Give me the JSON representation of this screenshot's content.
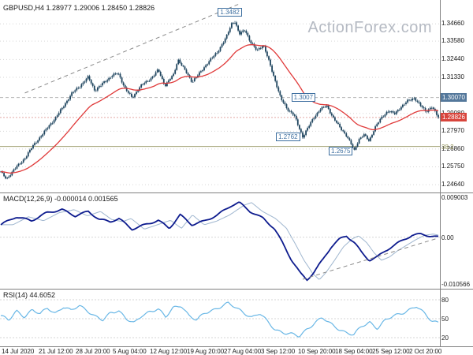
{
  "header": {
    "symbol_line": "GBPUSD,H4 1.28977 1.29006 1.28450 1.28826",
    "watermark": "ActionForex.com"
  },
  "indicator_labels": {
    "macd": "MACD(12,26,9) -0.000014 0.001565",
    "rsi": "RSI(14) 44.6052"
  },
  "colors": {
    "candle": "#1f455f",
    "ma": "#e03a3a",
    "macd": "#0d1b8e",
    "macd_signal": "#9fb6cf",
    "rsi": "#69b7e6",
    "grid": "#d6d6d6",
    "trendline": "#8a8a8a",
    "separator": "#808080",
    "fib_line": "#a0a070",
    "fib_text": "#8f8f55",
    "level_badge": "#54789b",
    "current_badge": "#d8453c",
    "flag": "#3c6e9f",
    "watermark": "#b5bac3",
    "axis_text": "#1a1a1a"
  },
  "chart_data": [
    {
      "type": "candlestick",
      "title": "GBPUSD,H4",
      "ohlc_display": {
        "open": 1.28977,
        "high": 1.29006,
        "low": 1.2845,
        "close": 1.28826
      },
      "ylim": [
        1.2425,
        1.3585
      ],
      "y_ticks": [
        {
          "label": "1.34660",
          "value": 1.3466
        },
        {
          "label": "1.33580",
          "value": 1.3358
        },
        {
          "label": "1.32440",
          "value": 1.3244
        },
        {
          "label": "1.31330",
          "value": 1.3133
        },
        {
          "label": "1.29080",
          "value": 1.2908
        },
        {
          "label": "1.27970",
          "value": 1.2797
        },
        {
          "label": "1.26860",
          "value": 1.2686
        },
        {
          "label": "1.25750",
          "value": 1.2575
        },
        {
          "label": "1.24640",
          "value": 1.2464
        }
      ],
      "axis_badges": [
        {
          "label": "1.30070",
          "value": 1.3007,
          "style": "level"
        },
        {
          "label": "1.28826",
          "value": 1.28826,
          "style": "current"
        },
        {
          "label": "38.2",
          "value": 1.2702,
          "style": "fib"
        }
      ],
      "x_ticks": [
        "14 Jul 2020",
        "21 Jul 12:00",
        "28 Jul 20:00",
        "5 Aug 04:00",
        "12 Aug 12:00",
        "19 Aug 20:00",
        "27 Aug 04:00",
        "3 Sep 12:00",
        "10 Sep 20:00",
        "18 Sep 04:00",
        "25 Sep 12:00",
        "2 Oct 20:00"
      ],
      "close_path": [
        [
          0.0,
          1.2545
        ],
        [
          0.013,
          1.2495
        ],
        [
          0.03,
          1.256
        ],
        [
          0.05,
          1.261
        ],
        [
          0.072,
          1.27
        ],
        [
          0.1,
          1.2795
        ],
        [
          0.125,
          1.288
        ],
        [
          0.145,
          1.296
        ],
        [
          0.163,
          1.3035
        ],
        [
          0.185,
          1.309
        ],
        [
          0.2,
          1.3135
        ],
        [
          0.215,
          1.305
        ],
        [
          0.235,
          1.31
        ],
        [
          0.255,
          1.3145
        ],
        [
          0.268,
          1.316
        ],
        [
          0.285,
          1.306
        ],
        [
          0.3,
          1.3005
        ],
        [
          0.32,
          1.308
        ],
        [
          0.345,
          1.313
        ],
        [
          0.36,
          1.318
        ],
        [
          0.375,
          1.308
        ],
        [
          0.395,
          1.315
        ],
        [
          0.405,
          1.3245
        ],
        [
          0.42,
          1.318
        ],
        [
          0.437,
          1.3105
        ],
        [
          0.455,
          1.316
        ],
        [
          0.475,
          1.323
        ],
        [
          0.495,
          1.329
        ],
        [
          0.515,
          1.338
        ],
        [
          0.528,
          1.347
        ],
        [
          0.535,
          1.3482
        ],
        [
          0.545,
          1.34
        ],
        [
          0.558,
          1.343
        ],
        [
          0.57,
          1.3355
        ],
        [
          0.585,
          1.33
        ],
        [
          0.6,
          1.3335
        ],
        [
          0.612,
          1.324
        ],
        [
          0.625,
          1.313
        ],
        [
          0.64,
          1.3
        ],
        [
          0.655,
          1.2935
        ],
        [
          0.67,
          1.29
        ],
        [
          0.68,
          1.283
        ],
        [
          0.69,
          1.2762
        ],
        [
          0.7,
          1.281
        ],
        [
          0.715,
          1.288
        ],
        [
          0.73,
          1.2935
        ],
        [
          0.745,
          1.2955
        ],
        [
          0.76,
          1.288
        ],
        [
          0.775,
          1.282
        ],
        [
          0.79,
          1.277
        ],
        [
          0.8,
          1.272
        ],
        [
          0.808,
          1.2675
        ],
        [
          0.818,
          1.2745
        ],
        [
          0.83,
          1.2775
        ],
        [
          0.842,
          1.2735
        ],
        [
          0.855,
          1.282
        ],
        [
          0.87,
          1.288
        ],
        [
          0.885,
          1.2925
        ],
        [
          0.9,
          1.2905
        ],
        [
          0.915,
          1.295
        ],
        [
          0.93,
          1.2985
        ],
        [
          0.945,
          1.3005
        ],
        [
          0.958,
          1.296
        ],
        [
          0.972,
          1.292
        ],
        [
          0.985,
          1.295
        ],
        [
          1.0,
          1.2883
        ]
      ],
      "overlays": {
        "moving_average": {
          "color": "#e03a3a"
        },
        "trendline": {
          "from": [
            0.055,
            1.3035
          ],
          "to": [
            0.545,
            1.359
          ],
          "style": "dashed"
        },
        "levels": [
          {
            "value": 1.3007,
            "style": "dashed-gray"
          },
          {
            "value": 1.28826,
            "style": "dashed-red"
          },
          {
            "value": 1.2702,
            "style": "fib-solid",
            "label": "38.2"
          }
        ],
        "flags": [
          {
            "label": "1.3482",
            "value": 1.3482,
            "x": 0.533,
            "position": "above"
          },
          {
            "label": "1.3007",
            "value": 1.3007,
            "x": 0.7,
            "position": "on"
          },
          {
            "label": "1.2762",
            "value": 1.2762,
            "x": 0.665,
            "position": "on"
          },
          {
            "label": "1.2675",
            "value": 1.2675,
            "x": 0.785,
            "position": "on"
          }
        ]
      }
    },
    {
      "type": "line",
      "name": "MACD(12,26,9)",
      "values_display": [
        -1.4e-05,
        0.001565
      ],
      "ylim": [
        -0.010566,
        0.009003
      ],
      "y_ticks": [
        {
          "label": "0.009003",
          "value": 0.009003
        },
        {
          "label": "0.00",
          "value": 0.0
        },
        {
          "label": "-0.010566",
          "value": -0.010566
        }
      ],
      "path": [
        [
          0.0,
          0.0028
        ],
        [
          0.035,
          0.0046
        ],
        [
          0.07,
          0.0037
        ],
        [
          0.105,
          0.0055
        ],
        [
          0.14,
          0.0062
        ],
        [
          0.17,
          0.0048
        ],
        [
          0.2,
          0.0058
        ],
        [
          0.225,
          0.004
        ],
        [
          0.25,
          0.0035
        ],
        [
          0.27,
          0.0042
        ],
        [
          0.3,
          0.0018
        ],
        [
          0.33,
          0.0028
        ],
        [
          0.36,
          0.0038
        ],
        [
          0.385,
          0.002
        ],
        [
          0.41,
          0.005
        ],
        [
          0.437,
          0.0028
        ],
        [
          0.465,
          0.0036
        ],
        [
          0.495,
          0.005
        ],
        [
          0.528,
          0.0072
        ],
        [
          0.545,
          0.0078
        ],
        [
          0.57,
          0.0058
        ],
        [
          0.6,
          0.0042
        ],
        [
          0.625,
          0.002
        ],
        [
          0.645,
          -0.0015
        ],
        [
          0.665,
          -0.0052
        ],
        [
          0.685,
          -0.0082
        ],
        [
          0.7,
          -0.0096
        ],
        [
          0.715,
          -0.008
        ],
        [
          0.735,
          -0.0052
        ],
        [
          0.755,
          -0.0022
        ],
        [
          0.775,
          -0.0004
        ],
        [
          0.79,
          0.0003
        ],
        [
          0.808,
          -0.0012
        ],
        [
          0.825,
          -0.0035
        ],
        [
          0.842,
          -0.0052
        ],
        [
          0.86,
          -0.0045
        ],
        [
          0.88,
          -0.003
        ],
        [
          0.9,
          -0.0018
        ],
        [
          0.92,
          -0.0006
        ],
        [
          0.94,
          0.0004
        ],
        [
          0.96,
          0.0007
        ],
        [
          0.98,
          0.0003
        ],
        [
          1.0,
          -1.4e-05
        ]
      ],
      "trendline": {
        "from": [
          0.69,
          -0.0095
        ],
        "to": [
          1.0,
          -0.0002
        ],
        "style": "dashed"
      }
    },
    {
      "type": "line",
      "name": "RSI(14)",
      "current": 44.6052,
      "ylim": [
        10,
        90
      ],
      "y_ticks": [
        {
          "label": "80",
          "value": 80
        },
        {
          "label": "50",
          "value": 50
        },
        {
          "label": "20",
          "value": 20
        }
      ],
      "path": [
        [
          0.0,
          55
        ],
        [
          0.018,
          47
        ],
        [
          0.036,
          62
        ],
        [
          0.054,
          54
        ],
        [
          0.072,
          64
        ],
        [
          0.09,
          57
        ],
        [
          0.107,
          67
        ],
        [
          0.125,
          59
        ],
        [
          0.143,
          69
        ],
        [
          0.161,
          62
        ],
        [
          0.179,
          71
        ],
        [
          0.197,
          64
        ],
        [
          0.215,
          54
        ],
        [
          0.233,
          47
        ],
        [
          0.251,
          59
        ],
        [
          0.269,
          64
        ],
        [
          0.287,
          50
        ],
        [
          0.305,
          42
        ],
        [
          0.323,
          55
        ],
        [
          0.341,
          62
        ],
        [
          0.359,
          66
        ],
        [
          0.377,
          52
        ],
        [
          0.394,
          67
        ],
        [
          0.412,
          72
        ],
        [
          0.43,
          55
        ],
        [
          0.448,
          47
        ],
        [
          0.466,
          59
        ],
        [
          0.484,
          64
        ],
        [
          0.502,
          69
        ],
        [
          0.52,
          74
        ],
        [
          0.538,
          67
        ],
        [
          0.556,
          60
        ],
        [
          0.574,
          52
        ],
        [
          0.592,
          58
        ],
        [
          0.61,
          45
        ],
        [
          0.628,
          33
        ],
        [
          0.646,
          28
        ],
        [
          0.664,
          25
        ],
        [
          0.682,
          22
        ],
        [
          0.7,
          34
        ],
        [
          0.718,
          44
        ],
        [
          0.735,
          51
        ],
        [
          0.753,
          42
        ],
        [
          0.771,
          35
        ],
        [
          0.789,
          28
        ],
        [
          0.807,
          24
        ],
        [
          0.825,
          38
        ],
        [
          0.843,
          45
        ],
        [
          0.861,
          35
        ],
        [
          0.879,
          47
        ],
        [
          0.897,
          54
        ],
        [
          0.915,
          59
        ],
        [
          0.933,
          64
        ],
        [
          0.95,
          69
        ],
        [
          0.968,
          58
        ],
        [
          0.986,
          47
        ],
        [
          1.0,
          44.6
        ]
      ]
    }
  ]
}
